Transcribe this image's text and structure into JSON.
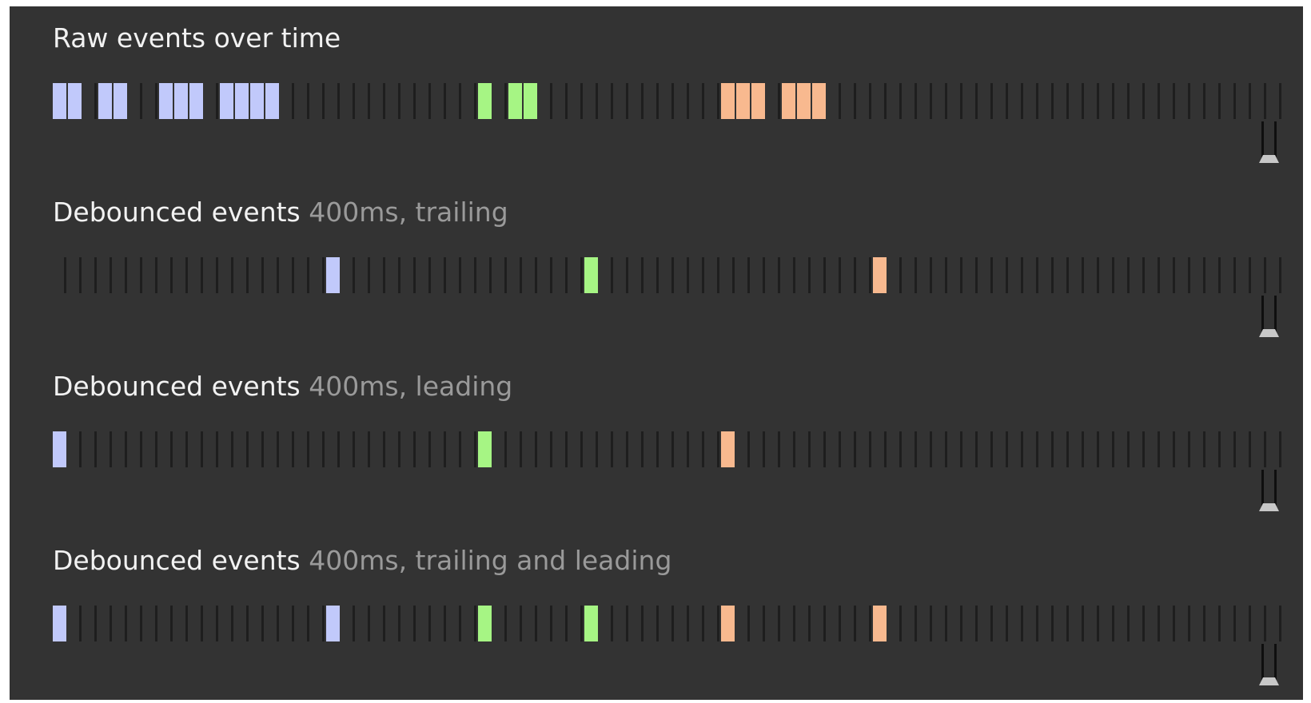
{
  "colors": {
    "background": "#333333",
    "tick": "#1e1e1e",
    "group_a": "#c1c9fb",
    "group_b": "#a6f584",
    "group_c": "#f8b98f"
  },
  "rows": [
    {
      "title": "Raw events over time",
      "subtitle": "",
      "events": [
        {
          "slot": 0,
          "group": "a"
        },
        {
          "slot": 1,
          "group": "a"
        },
        {
          "slot": 3,
          "group": "a"
        },
        {
          "slot": 4,
          "group": "a"
        },
        {
          "slot": 7,
          "group": "a"
        },
        {
          "slot": 8,
          "group": "a"
        },
        {
          "slot": 9,
          "group": "a"
        },
        {
          "slot": 11,
          "group": "a"
        },
        {
          "slot": 12,
          "group": "a"
        },
        {
          "slot": 13,
          "group": "a"
        },
        {
          "slot": 14,
          "group": "a"
        },
        {
          "slot": 28,
          "group": "b"
        },
        {
          "slot": 30,
          "group": "b"
        },
        {
          "slot": 31,
          "group": "b"
        },
        {
          "slot": 44,
          "group": "c"
        },
        {
          "slot": 45,
          "group": "c"
        },
        {
          "slot": 46,
          "group": "c"
        },
        {
          "slot": 48,
          "group": "c"
        },
        {
          "slot": 49,
          "group": "c"
        },
        {
          "slot": 50,
          "group": "c"
        }
      ]
    },
    {
      "title": "Debounced events",
      "subtitle": "400ms, trailing",
      "events": [
        {
          "slot": 18,
          "group": "a"
        },
        {
          "slot": 35,
          "group": "b"
        },
        {
          "slot": 54,
          "group": "c"
        }
      ]
    },
    {
      "title": "Debounced events",
      "subtitle": "400ms, leading",
      "events": [
        {
          "slot": 0,
          "group": "a"
        },
        {
          "slot": 28,
          "group": "b"
        },
        {
          "slot": 44,
          "group": "c"
        }
      ]
    },
    {
      "title": "Debounced events",
      "subtitle": "400ms, trailing and leading",
      "events": [
        {
          "slot": 0,
          "group": "a"
        },
        {
          "slot": 18,
          "group": "a"
        },
        {
          "slot": 28,
          "group": "b"
        },
        {
          "slot": 35,
          "group": "b"
        },
        {
          "slot": 44,
          "group": "c"
        },
        {
          "slot": 54,
          "group": "c"
        }
      ]
    }
  ]
}
